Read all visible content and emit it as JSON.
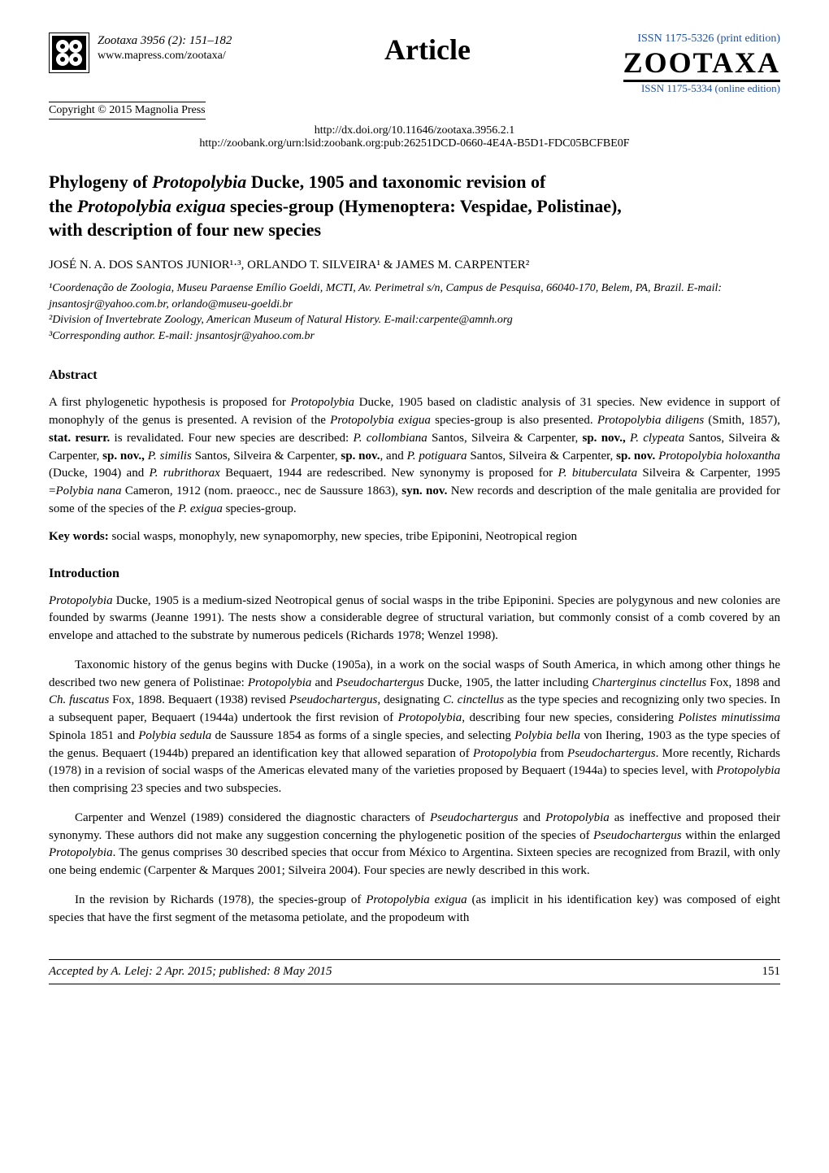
{
  "header": {
    "journal_citation": "Zootaxa 3956 (2): 151–182",
    "journal_url": "www.mapress.com/zootaxa/",
    "copyright": "Copyright © 2015 Magnolia Press",
    "article_label": "Article",
    "issn_print": "ISSN 1175-5326  (print edition)",
    "zootaxa_brand": "ZOOTAXA",
    "issn_online": "ISSN 1175-5334 (online edition)",
    "doi": "http://dx.doi.org/10.11646/zootaxa.3956.2.1",
    "zoobank": "http://zoobank.org/urn:lsid:zoobank.org:pub:26251DCD-0660-4E4A-B5D1-FDC05BCFBE0F"
  },
  "title_parts": {
    "line1_pre": "Phylogeny of ",
    "line1_em": "Protopolybia",
    "line1_post": " Ducke, 1905 and taxonomic revision of",
    "line2_pre": "the ",
    "line2_em": "Protopolybia exigua",
    "line2_post": " species-group (Hymenoptera: Vespidae, Polistinae),",
    "line3": "with description of four new species"
  },
  "authors": "JOSÉ N. A. DOS SANTOS JUNIOR¹·³, ORLANDO T. SILVEIRA¹ & JAMES M. CARPENTER²",
  "affiliations": {
    "a1": "¹Coordenação de Zoologia, Museu Paraense Emílio Goeldi, MCTI, Av. Perimetral s/n, Campus de Pesquisa, 66040-170, Belem, PA, Brazil. E-mail: jnsantosjr@yahoo.com.br, orlando@museu-goeldi.br",
    "a2": "²Division of Invertebrate Zoology, American Museum of Natural History. E-mail:carpente@amnh.org",
    "a3": "³Corresponding author. E-mail: jnsantosjr@yahoo.com.br"
  },
  "abstract": {
    "heading": "Abstract",
    "text_html": "A first phylogenetic hypothesis is proposed for <em>Protopolybia</em> Ducke, 1905 based on cladistic analysis of 31 species. New evidence in support of monophyly of the genus is presented. A revision of the <em>Protopolybia exigua</em> species-group is also presented. <em>Protopolybia diligens</em> (Smith, 1857), <strong>stat. resurr.</strong> is revalidated. Four new species are described: <em>P. collombiana</em> Santos, Silveira & Carpenter, <strong>sp. nov.,</strong> <em>P. clypeata</em> Santos, Silveira & Carpenter, <strong>sp. nov.,</strong> <em>P. similis</em> Santos, Silveira & Carpenter, <strong>sp. nov.</strong>, and <em>P. potiguara</em> Santos, Silveira & Carpenter, <strong>sp. nov.</strong> <em>Protopolybia holoxantha</em> (Ducke, 1904) and <em>P. rubrithorax</em> Bequaert, 1944 are redescribed. New synonymy is proposed for <em>P. bituberculata</em> Silveira & Carpenter, 1995 =<em>Polybia nana</em> Cameron, 1912 (nom. praeocc., nec de Saussure 1863), <strong>syn. nov.</strong> New records and description of the male genitalia are provided for some of the species of the <em>P. exigua</em> species-group."
  },
  "keywords": {
    "label": "Key words:",
    "text": " social wasps, monophyly, new synapomorphy, new species, tribe Epiponini, Neotropical region"
  },
  "introduction": {
    "heading": "Introduction",
    "p1_html": "<em>Protopolybia</em> Ducke, 1905 is a medium-sized Neotropical genus of social wasps in the tribe Epiponini. Species are polygynous and new colonies are founded by swarms (Jeanne 1991). The nests show a considerable degree of structural variation, but commonly consist of a comb covered by an envelope and attached to the substrate by numerous pedicels (Richards 1978; Wenzel 1998).",
    "p2_html": "Taxonomic history of the genus begins with Ducke (1905a), in a work on the social wasps of South America, in which among other things he described two new genera of Polistinae: <em>Protopolybia</em> and <em>Pseudochartergus</em> Ducke, 1905, the latter including <em>Charterginus cinctellus</em> Fox, 1898 and <em>Ch. fuscatus</em> Fox, 1898. Bequaert (1938) revised <em>Pseudochartergus</em>, designating <em>C. cinctellus</em> as the type species and recognizing only two species. In a subsequent paper, Bequaert (1944a) undertook the first revision of <em>Protopolybia</em>, describing four new species, considering <em>Polistes minutissima</em> Spinola 1851 and <em>Polybia sedula</em> de Saussure 1854 as forms of a single species, and selecting <em>Polybia bella</em> von Ihering, 1903 as the type species of the genus. Bequaert (1944b) prepared an identification key that allowed separation of <em>Protopolybia</em> from <em>Pseudochartergus</em>. More recently, Richards (1978) in a revision of social wasps of the Americas elevated many of the varieties proposed by Bequaert (1944a) to species level, with <em>Protopolybia</em> then comprising 23 species and two subspecies.",
    "p3_html": "Carpenter and Wenzel (1989) considered the diagnostic characters of <em>Pseudochartergus</em> and <em>Protopolybia</em> as ineffective and proposed their synonymy. These authors did not make any suggestion concerning the phylogenetic position of the species of <em>Pseudochartergus</em> within the enlarged <em>Protopolybia</em>. The genus comprises 30 described species that occur from México to Argentina. Sixteen species are recognized from Brazil, with only one being endemic (Carpenter & Marques 2001; Silveira 2004). Four species are newly described in this work.",
    "p4_html": "In the revision by Richards (1978), the species-group of <em>Protopolybia exigua</em> (as implicit in his identification key) was composed of eight species that have the first segment of the metasoma petiolate, and the propodeum with"
  },
  "footer": {
    "accepted": "Accepted by A. Lelej: 2 Apr. 2015; published: 8 May 2015",
    "page": "151"
  },
  "colors": {
    "text": "#000000",
    "background": "#ffffff",
    "link_blue": "#2050a0"
  }
}
